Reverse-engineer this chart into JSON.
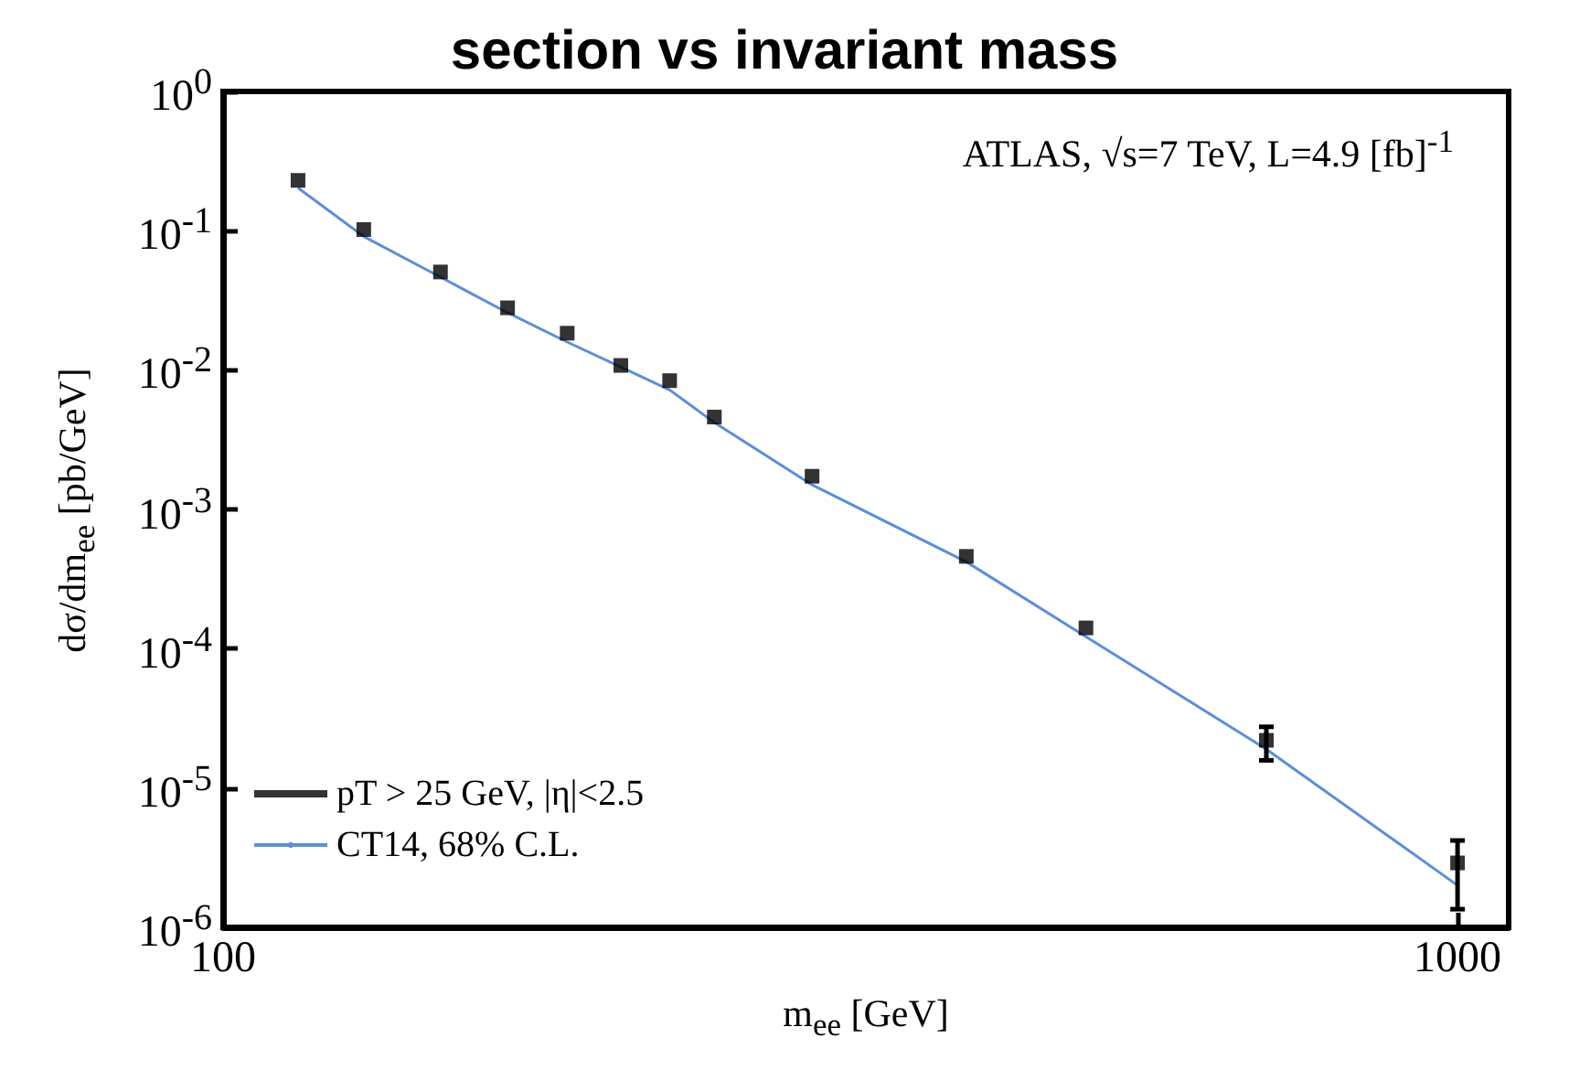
{
  "chart_data": {
    "type": "scatter",
    "title": "section vs invariant mass",
    "xlabel": "m$_{ee}$ [GeV]",
    "ylabel": "dσ/dm$_{ee}$ [pb/GeV]",
    "annotations": [
      "ATLAS, √s=7 TeV, L=4.9 [fb]$^{-1}$"
    ],
    "log": "xy",
    "grid": false,
    "legend": "bottom left",
    "marker": "square",
    "xlim": [
      100,
      1100
    ],
    "xticks": [
      100,
      1000
    ],
    "ylim": [
      1e-06,
      1
    ],
    "yticks": [
      {
        "value": 1,
        "label": "10$^{0}$"
      },
      {
        "value": 0.1,
        "label": "10$^{-1}$"
      },
      {
        "value": 0.01,
        "label": "10$^{-2}$"
      },
      {
        "value": 0.001,
        "label": "10$^{-3}$"
      },
      {
        "value": 0.0001,
        "label": "10$^{-4}$"
      },
      {
        "value": 1e-05,
        "label": "10$^{-5}$"
      },
      {
        "value": 1e-06,
        "label": "10$^{-6}$"
      }
    ],
    "series": [
      {
        "name": "pT > 25 GeV, |η|<2.5",
        "color": "#000000",
        "x": [
          115,
          130,
          150,
          170,
          190,
          210,
          230,
          250,
          300,
          400,
          500,
          700,
          1000
        ],
        "values": [
          0.23,
          0.102,
          0.0506,
          0.028,
          0.0184,
          0.0108,
          0.0084,
          0.0046,
          0.00173,
          0.00046,
          0.000141,
          2.2e-05,
          2.9e-06
        ],
        "errors": [
          null,
          null,
          null,
          null,
          null,
          null,
          null,
          null,
          null,
          null,
          null,
          [
            1.58e-05,
            2.75e-05
          ],
          [
            1.35e-06,
            4.2e-06
          ]
        ]
      },
      {
        "name": "CT14, 68% C.L.",
        "type": "line",
        "color": "#5b8fd9",
        "marker": "none",
        "x": [
          115,
          130,
          150,
          170,
          190,
          210,
          230,
          250,
          300,
          400,
          500,
          700,
          1000
        ],
        "values": [
          0.203,
          0.091,
          0.0465,
          0.0258,
          0.0159,
          0.0105,
          0.0072,
          0.0042,
          0.0015,
          0.00042,
          0.000122,
          1.9e-05,
          2e-06
        ]
      }
    ]
  }
}
